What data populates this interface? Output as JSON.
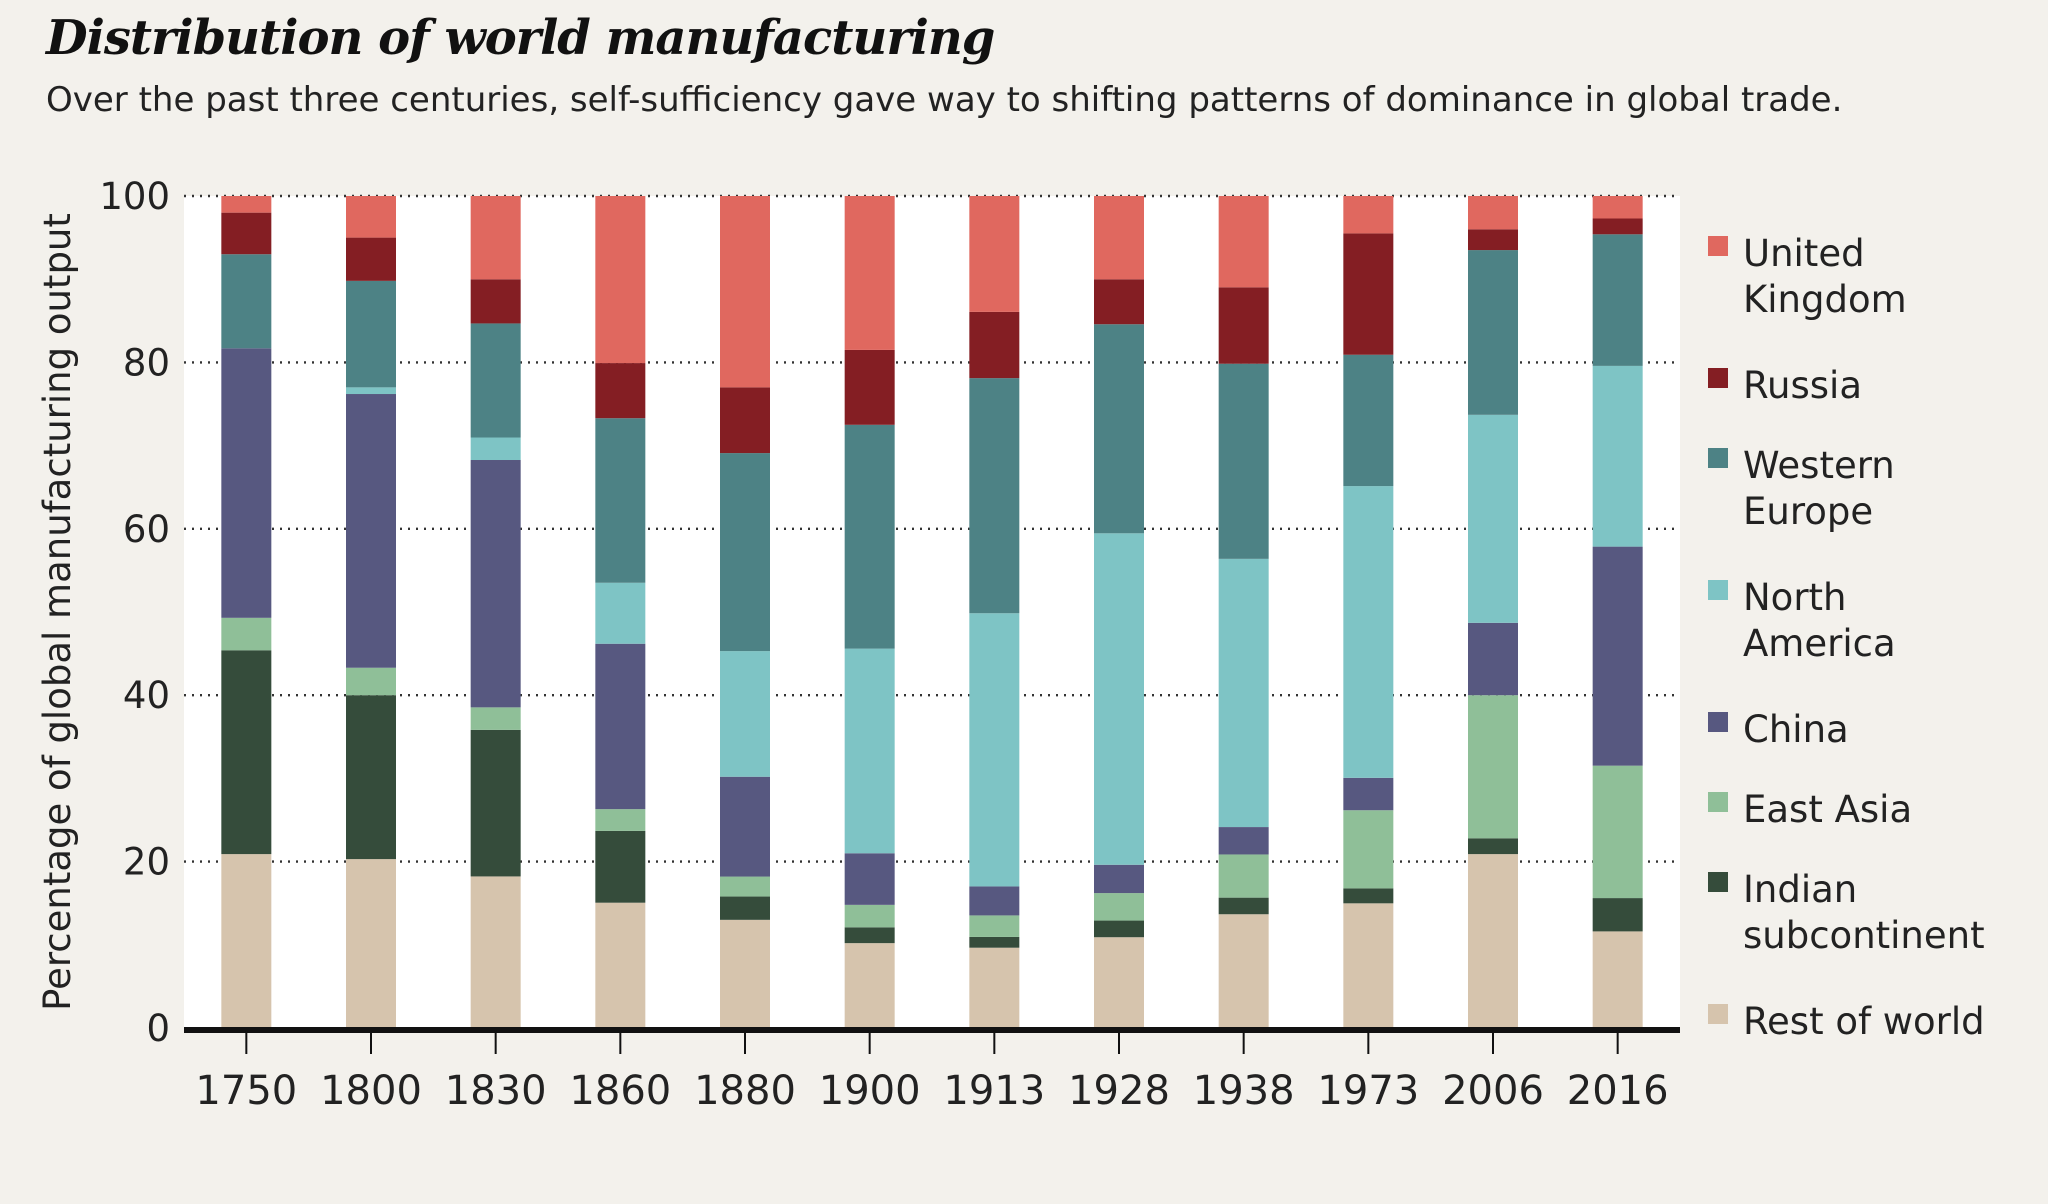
{
  "chart_data": {
    "type": "bar",
    "stacked": true,
    "title": "Distribution of world manufacturing",
    "subtitle": "Over the past three centuries, self-sufficiency gave way to shifting patterns of dominance in global trade.",
    "ylabel": "Percentage of global manufacturing output",
    "xlabel": "",
    "ylim": [
      0,
      100
    ],
    "yticks": [
      0,
      20,
      40,
      60,
      80,
      100
    ],
    "grid": "horizontal dotted",
    "legend_position": "right",
    "categories": [
      "1750",
      "1800",
      "1830",
      "1860",
      "1880",
      "1900",
      "1913",
      "1928",
      "1938",
      "1973",
      "2006",
      "2016"
    ],
    "series": [
      {
        "name": "Rest of world",
        "legend_lines": [
          "Rest of world"
        ],
        "color": "#d6c4ad",
        "values": [
          20.9,
          20.3,
          18.2,
          15.0,
          13.0,
          10.2,
          9.7,
          10.9,
          13.7,
          15.0,
          20.9,
          11.6
        ]
      },
      {
        "name": "Indian subcontinent",
        "legend_lines": [
          "Indian",
          "subcontinent"
        ],
        "color": "#354c3b",
        "values": [
          24.5,
          19.7,
          17.6,
          8.6,
          2.8,
          1.9,
          1.3,
          2.0,
          2.0,
          1.8,
          1.9,
          4.0
        ]
      },
      {
        "name": "East Asia",
        "legend_lines": [
          "East Asia"
        ],
        "color": "#8fbf98",
        "values": [
          3.9,
          3.3,
          2.7,
          2.6,
          2.4,
          2.7,
          2.6,
          3.3,
          5.2,
          9.4,
          17.2,
          15.9
        ]
      },
      {
        "name": "China",
        "legend_lines": [
          "China"
        ],
        "color": "#575880",
        "values": [
          32.4,
          32.9,
          29.7,
          19.8,
          12.0,
          6.2,
          3.5,
          3.4,
          3.3,
          3.9,
          8.7,
          26.3
        ]
      },
      {
        "name": "North America",
        "legend_lines": [
          "North",
          "America"
        ],
        "color": "#7ec4c5",
        "values": [
          0.0,
          0.8,
          2.7,
          7.3,
          15.1,
          24.6,
          33.0,
          39.8,
          32.3,
          35.1,
          25.0,
          21.7
        ]
      },
      {
        "name": "Western Europe",
        "legend_lines": [
          "Western",
          "Europe"
        ],
        "color": "#4d8285",
        "values": [
          11.3,
          12.8,
          13.7,
          19.7,
          23.8,
          26.9,
          28.4,
          25.1,
          23.5,
          15.8,
          19.8,
          15.8
        ]
      },
      {
        "name": "Russia",
        "legend_lines": [
          "Russia"
        ],
        "color": "#841e23",
        "values": [
          5.0,
          5.2,
          5.3,
          6.6,
          7.9,
          9.0,
          8.0,
          5.4,
          9.2,
          14.6,
          2.5,
          1.9
        ]
      },
      {
        "name": "United Kingdom",
        "legend_lines": [
          "United",
          "Kingdom"
        ],
        "color": "#e0685f",
        "values": [
          2.0,
          5.0,
          10.0,
          20.0,
          23.0,
          18.5,
          14.0,
          10.0,
          11.0,
          4.5,
          4.0,
          2.7
        ]
      }
    ]
  }
}
